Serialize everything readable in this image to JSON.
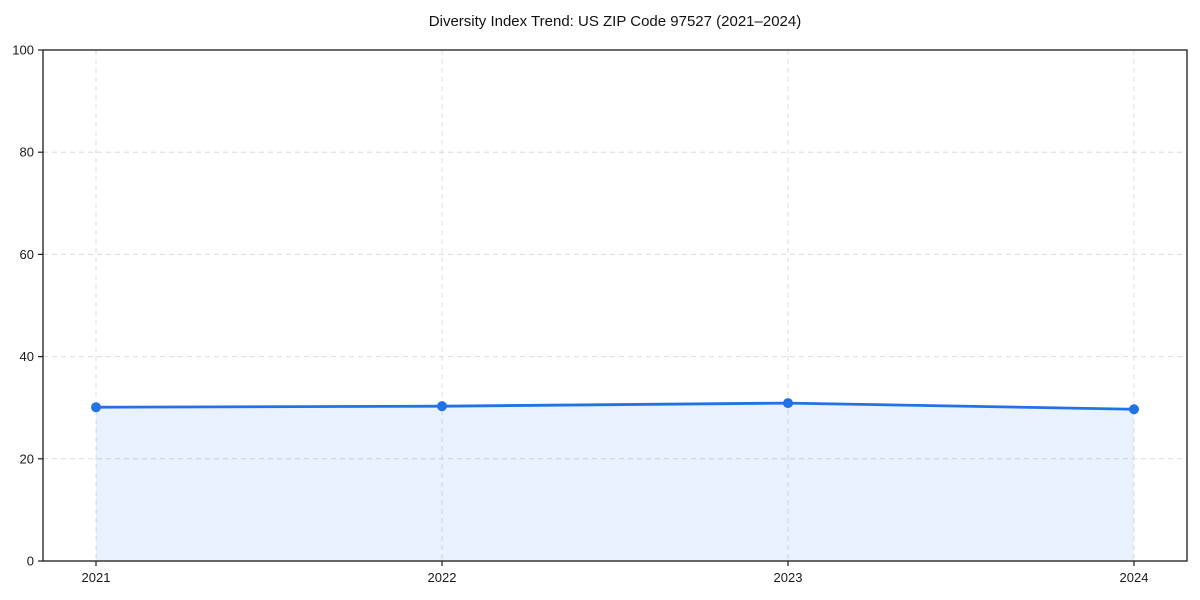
{
  "figure": {
    "title": "Diversity Index Trend: US ZIP Code 97527 (2021–2024)"
  },
  "chart_data": {
    "type": "line",
    "title": "Diversity Index Trend: US ZIP Code 97527 (2021–2024)",
    "categories": [
      "2021",
      "2022",
      "2023",
      "2024"
    ],
    "series": [
      {
        "name": "Diversity Index",
        "values": [
          30.1,
          30.3,
          30.9,
          29.7
        ]
      }
    ],
    "xlabel": "",
    "ylabel": "",
    "ylim": [
      0,
      100
    ],
    "yticks": [
      0,
      20,
      40,
      60,
      80,
      100
    ],
    "grid": "dashed, both axes",
    "legend_position": "none",
    "area_fill": true,
    "marker": "circle",
    "line_color": "#2172e4",
    "fill_color": "rgba(33,114,228,0.10)",
    "grid_color": "#dcdcdc",
    "axis_color": "#1a1a1a"
  }
}
